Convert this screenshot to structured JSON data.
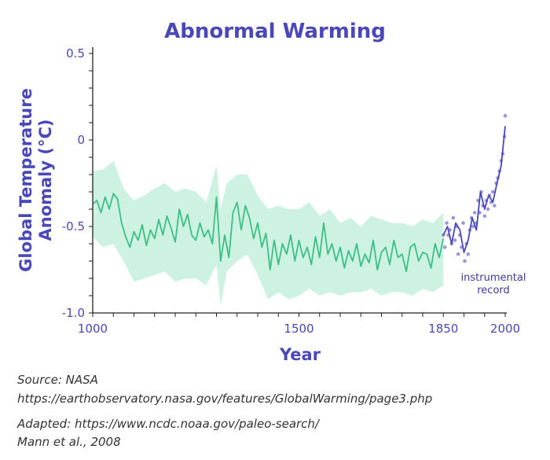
{
  "chart_data": {
    "type": "line",
    "title": "Abnormal Warming",
    "xlabel": "Year",
    "ylabel": "Global Temperature Anomaly (°C)",
    "ylabel_lines": [
      "Global Temperature",
      "Anomaly (°C)"
    ],
    "xlim": [
      1000,
      2000
    ],
    "ylim": [
      -1.0,
      0.5
    ],
    "x_ticks": [
      1000,
      1500,
      1850,
      2000
    ],
    "y_ticks": [
      0.5,
      0,
      -0.5,
      -1.0
    ],
    "y_tick_labels": [
      "0.5",
      "0",
      "-0.5",
      "-1.0"
    ],
    "colors": {
      "reconstruction": "#3cbf86",
      "band": "#cdf2e1",
      "instrumental": "#4a47b8",
      "instrumental_points": "#9b98d8",
      "text": "#4a47b8"
    },
    "series": [
      {
        "kind": "reconstruction",
        "x": [
          1000,
          1010,
          1020,
          1030,
          1040,
          1050,
          1060,
          1070,
          1080,
          1090,
          1100,
          1110,
          1120,
          1130,
          1140,
          1150,
          1160,
          1170,
          1180,
          1190,
          1200,
          1210,
          1220,
          1230,
          1240,
          1250,
          1260,
          1270,
          1280,
          1290,
          1300,
          1310,
          1320,
          1330,
          1340,
          1350,
          1360,
          1370,
          1380,
          1390,
          1400,
          1410,
          1420,
          1430,
          1440,
          1450,
          1460,
          1470,
          1480,
          1490,
          1500,
          1510,
          1520,
          1530,
          1540,
          1550,
          1560,
          1570,
          1580,
          1590,
          1600,
          1610,
          1620,
          1630,
          1640,
          1650,
          1660,
          1670,
          1680,
          1690,
          1700,
          1710,
          1720,
          1730,
          1740,
          1750,
          1760,
          1770,
          1780,
          1790,
          1800,
          1810,
          1820,
          1830,
          1840,
          1850
        ],
        "y": [
          -0.37,
          -0.35,
          -0.42,
          -0.33,
          -0.4,
          -0.31,
          -0.34,
          -0.48,
          -0.56,
          -0.62,
          -0.53,
          -0.58,
          -0.49,
          -0.61,
          -0.52,
          -0.57,
          -0.46,
          -0.55,
          -0.44,
          -0.51,
          -0.59,
          -0.4,
          -0.5,
          -0.43,
          -0.55,
          -0.58,
          -0.48,
          -0.56,
          -0.52,
          -0.6,
          -0.33,
          -0.7,
          -0.55,
          -0.68,
          -0.42,
          -0.36,
          -0.52,
          -0.38,
          -0.45,
          -0.57,
          -0.48,
          -0.62,
          -0.54,
          -0.75,
          -0.58,
          -0.72,
          -0.6,
          -0.66,
          -0.55,
          -0.7,
          -0.58,
          -0.68,
          -0.62,
          -0.72,
          -0.56,
          -0.68,
          -0.48,
          -0.66,
          -0.6,
          -0.7,
          -0.62,
          -0.74,
          -0.64,
          -0.7,
          -0.6,
          -0.73,
          -0.66,
          -0.71,
          -0.58,
          -0.75,
          -0.65,
          -0.62,
          -0.72,
          -0.58,
          -0.68,
          -0.66,
          -0.76,
          -0.62,
          -0.6,
          -0.7,
          -0.65,
          -0.66,
          -0.74,
          -0.6,
          -0.68,
          -0.57
        ]
      },
      {
        "kind": "instrumental",
        "x": [
          1850,
          1860,
          1870,
          1880,
          1890,
          1900,
          1910,
          1920,
          1930,
          1940,
          1950,
          1960,
          1970,
          1980,
          1990,
          2000
        ],
        "y": [
          -0.55,
          -0.5,
          -0.6,
          -0.48,
          -0.52,
          -0.65,
          -0.58,
          -0.45,
          -0.52,
          -0.3,
          -0.4,
          -0.32,
          -0.36,
          -0.25,
          -0.15,
          0.08
        ]
      }
    ],
    "uncertainty_band": {
      "x": [
        1000,
        1025,
        1050,
        1075,
        1100,
        1125,
        1150,
        1175,
        1200,
        1225,
        1250,
        1275,
        1300,
        1310,
        1325,
        1350,
        1375,
        1400,
        1425,
        1450,
        1475,
        1500,
        1525,
        1550,
        1575,
        1600,
        1625,
        1650,
        1675,
        1700,
        1725,
        1750,
        1775,
        1800,
        1825,
        1850
      ],
      "upper": [
        -0.18,
        -0.17,
        -0.12,
        -0.28,
        -0.35,
        -0.32,
        -0.28,
        -0.25,
        -0.3,
        -0.28,
        -0.3,
        -0.36,
        -0.15,
        -0.4,
        -0.25,
        -0.2,
        -0.2,
        -0.32,
        -0.4,
        -0.38,
        -0.4,
        -0.4,
        -0.36,
        -0.44,
        -0.4,
        -0.48,
        -0.45,
        -0.5,
        -0.44,
        -0.46,
        -0.48,
        -0.48,
        -0.5,
        -0.46,
        -0.48,
        -0.42
      ],
      "lower": [
        -0.56,
        -0.62,
        -0.6,
        -0.7,
        -0.82,
        -0.8,
        -0.78,
        -0.76,
        -0.82,
        -0.8,
        -0.8,
        -0.84,
        -0.72,
        -0.96,
        -0.76,
        -0.7,
        -0.66,
        -0.78,
        -0.92,
        -0.88,
        -0.92,
        -0.9,
        -0.86,
        -0.9,
        -0.88,
        -0.9,
        -0.88,
        -0.88,
        -0.86,
        -0.9,
        -0.88,
        -0.88,
        -0.9,
        -0.86,
        -0.88,
        -0.84
      ]
    },
    "instrumental_points": {
      "x": [
        1850,
        1854,
        1858,
        1862,
        1866,
        1870,
        1874,
        1878,
        1882,
        1886,
        1890,
        1894,
        1898,
        1902,
        1906,
        1910,
        1914,
        1918,
        1922,
        1926,
        1930,
        1934,
        1938,
        1942,
        1946,
        1950,
        1954,
        1958,
        1962,
        1966,
        1970,
        1974,
        1978,
        1982,
        1986,
        1990,
        1994,
        1998,
        2000
      ],
      "y": [
        -0.55,
        -0.62,
        -0.48,
        -0.55,
        -0.52,
        -0.6,
        -0.45,
        -0.58,
        -0.5,
        -0.66,
        -0.55,
        -0.62,
        -0.48,
        -0.7,
        -0.6,
        -0.66,
        -0.52,
        -0.45,
        -0.5,
        -0.42,
        -0.48,
        -0.35,
        -0.42,
        -0.3,
        -0.38,
        -0.44,
        -0.35,
        -0.4,
        -0.32,
        -0.36,
        -0.3,
        -0.38,
        -0.25,
        -0.22,
        -0.18,
        -0.12,
        -0.08,
        0.02,
        0.14
      ]
    },
    "annotations": [
      {
        "text_lines": [
          "instrumental",
          "record"
        ],
        "near_x": 1960,
        "near_y": -0.8
      }
    ]
  },
  "footer": {
    "source_label": "Source: NASA",
    "source_url": "https://earthobservatory.nasa.gov/features/GlobalWarming/page3.php",
    "adapted_line": "Adapted: https://www.ncdc.noaa.gov/paleo-search/",
    "citation": "Mann et al., 2008"
  }
}
